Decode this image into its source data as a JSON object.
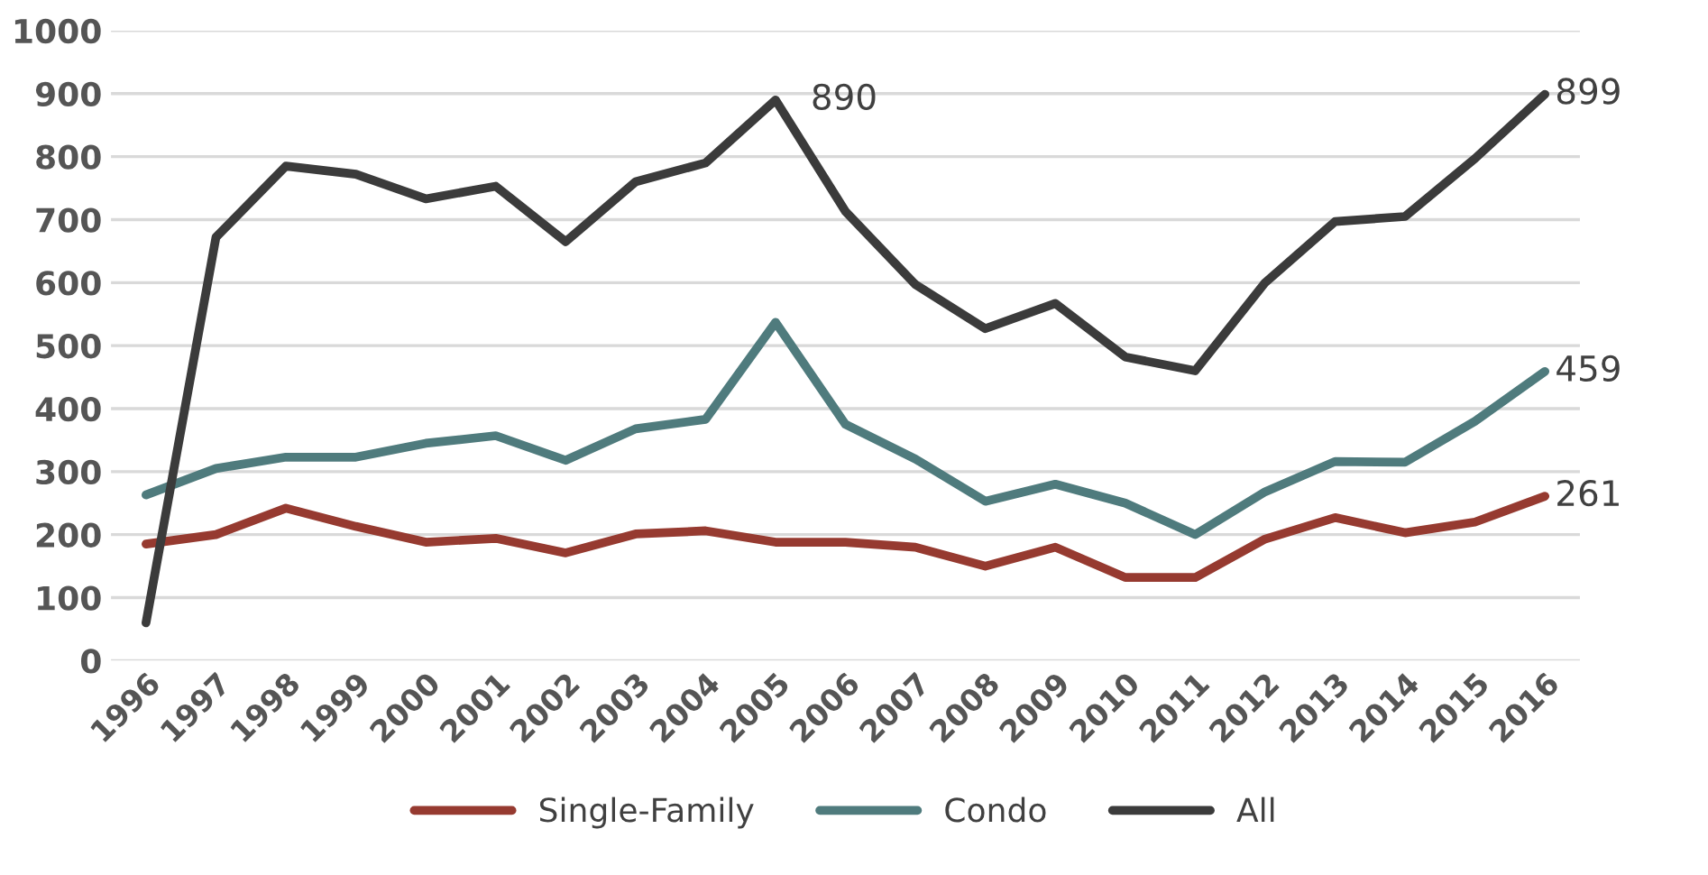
{
  "chart_data": {
    "type": "line",
    "categories": [
      "1996",
      "1997",
      "1998",
      "1999",
      "2000",
      "2001",
      "2002",
      "2003",
      "2004",
      "2005",
      "2006",
      "2007",
      "2008",
      "2009",
      "2010",
      "2011",
      "2012",
      "2013",
      "2014",
      "2015",
      "2016"
    ],
    "series": [
      {
        "name": "Single-Family",
        "color": "#963a30",
        "values": [
          185,
          200,
          242,
          213,
          188,
          194,
          171,
          201,
          206,
          188,
          188,
          180,
          150,
          180,
          132,
          132,
          193,
          227,
          203,
          220,
          261
        ],
        "value_labels": [
          null,
          null,
          null,
          null,
          null,
          null,
          null,
          null,
          null,
          null,
          null,
          null,
          null,
          null,
          null,
          null,
          null,
          null,
          null,
          null,
          "261"
        ]
      },
      {
        "name": "Condo",
        "color": "#4f7b7d",
        "values": [
          263,
          305,
          323,
          323,
          345,
          357,
          318,
          368,
          383,
          537,
          375,
          320,
          253,
          280,
          250,
          200,
          268,
          316,
          315,
          380,
          459
        ],
        "value_labels": [
          null,
          null,
          null,
          null,
          null,
          null,
          null,
          null,
          null,
          null,
          null,
          null,
          null,
          null,
          null,
          null,
          null,
          null,
          null,
          null,
          "459"
        ]
      },
      {
        "name": "All",
        "color": "#3b3b3b",
        "values": [
          60,
          672,
          785,
          772,
          733,
          753,
          665,
          760,
          790,
          890,
          713,
          597,
          527,
          567,
          482,
          460,
          600,
          697,
          705,
          797,
          899
        ],
        "value_labels": [
          null,
          null,
          null,
          null,
          null,
          null,
          null,
          null,
          null,
          "890",
          null,
          null,
          null,
          null,
          null,
          null,
          null,
          null,
          null,
          null,
          "899"
        ]
      }
    ],
    "ylim": [
      0,
      1000
    ],
    "yticks": [
      0,
      100,
      200,
      300,
      400,
      500,
      600,
      700,
      800,
      900,
      1000
    ],
    "grid": "y",
    "legend": "bottom",
    "marker": "none",
    "line_style": "solid"
  }
}
